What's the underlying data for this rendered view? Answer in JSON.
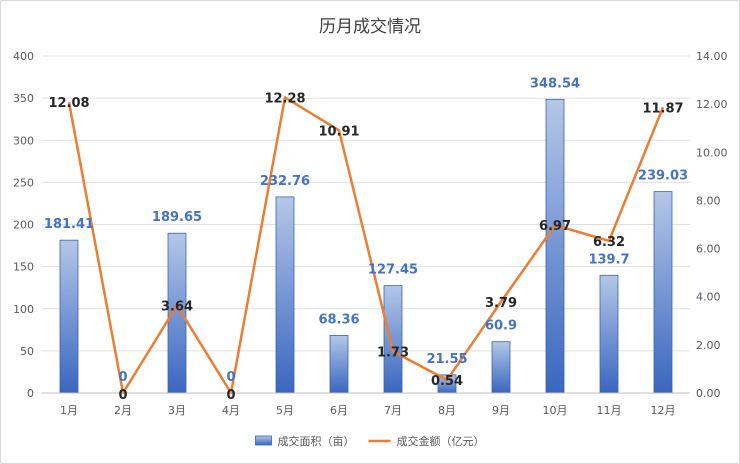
{
  "chart_data": {
    "type": "bar",
    "title": "历月成交情况",
    "categories": [
      "1月",
      "2月",
      "3月",
      "4月",
      "5月",
      "6月",
      "7月",
      "8月",
      "9月",
      "10月",
      "11月",
      "12月"
    ],
    "series": [
      {
        "name": "成交面积（亩）",
        "type": "bar",
        "axis": "left",
        "values": [
          181.41,
          0,
          189.65,
          0,
          232.76,
          68.36,
          127.45,
          21.55,
          60.9,
          348.54,
          139.7,
          239.03
        ],
        "labels": [
          "181.41",
          "0",
          "189.65",
          "0",
          "232.76",
          "68.36",
          "127.45",
          "21.55",
          "60.9",
          "348.54",
          "139.7",
          "239.03"
        ],
        "color": "#4472c4",
        "label_color": "#4472c4"
      },
      {
        "name": "成交金额（亿元）",
        "type": "line",
        "axis": "right",
        "values": [
          12.08,
          0,
          3.64,
          0,
          12.28,
          10.91,
          1.73,
          0.54,
          3.79,
          6.97,
          6.32,
          11.87
        ],
        "labels": [
          "12.08",
          "0",
          "3.64",
          "0",
          "12.28",
          "10.91",
          "1.73",
          "0.54",
          "3.79",
          "6.97",
          "6.32",
          "11.87"
        ],
        "color": "#ed7d31",
        "label_color": "#262626"
      }
    ],
    "y_left": {
      "range": [
        0,
        400
      ],
      "ticks": [
        "0",
        "50",
        "100",
        "150",
        "200",
        "250",
        "300",
        "350",
        "400"
      ]
    },
    "y_right": {
      "range": [
        0,
        14
      ],
      "ticks": [
        "0.00",
        "2.00",
        "4.00",
        "6.00",
        "8.00",
        "10.00",
        "12.00",
        "14.00"
      ]
    },
    "grid": true,
    "legend_position": "bottom"
  }
}
